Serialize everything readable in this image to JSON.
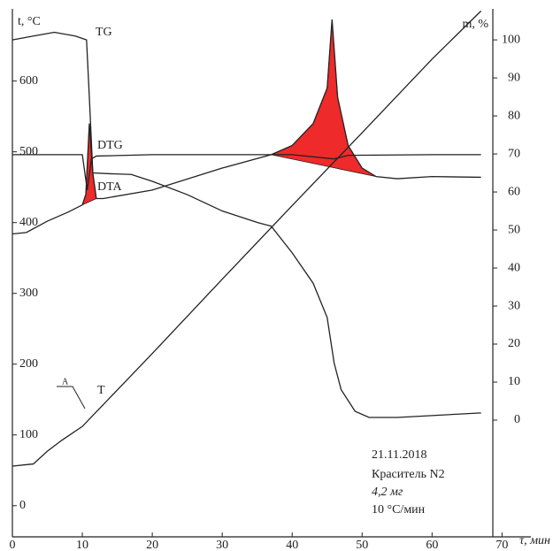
{
  "chart_data": {
    "type": "line",
    "ylabel": "t, °C",
    "y2label": "m, %",
    "xlabel": "τ, мин",
    "xlim": [
      0,
      74
    ],
    "xticks": [
      0,
      10,
      20,
      30,
      40,
      50,
      60,
      70
    ],
    "ylim": [
      -44,
      692
    ],
    "yticks": [
      0,
      100,
      200,
      300,
      400,
      500,
      600
    ],
    "y2lim": [
      -30.7,
      106.3
    ],
    "y2ticks": [
      0,
      10,
      20,
      30,
      40,
      50,
      60,
      70,
      80,
      90,
      100
    ],
    "grid": false,
    "series": [
      {
        "name": "TG",
        "color": "#222222",
        "axis": "y2",
        "x": [
          0,
          3,
          6,
          9,
          10.6,
          11,
          11.5,
          14,
          17,
          20,
          25,
          30,
          35,
          37,
          40,
          43,
          45,
          46,
          47,
          49,
          51,
          55,
          60,
          67
        ],
        "values": [
          100,
          101,
          102,
          101,
          100,
          85,
          65,
          64.8,
          64.6,
          62.8,
          59.3,
          55,
          52,
          51,
          44,
          36,
          27,
          15,
          8,
          2.3,
          0.7,
          0.7,
          1.2,
          1.9
        ]
      },
      {
        "name": "DTG",
        "color": "#222222",
        "x": [
          0,
          10,
          10.7,
          11.3,
          12,
          20,
          40,
          46,
          48,
          60,
          67
        ],
        "values": [
          496,
          496,
          446,
          490,
          494,
          496,
          496,
          490,
          495,
          496,
          496
        ]
      },
      {
        "name": "DTA",
        "color": "#222222",
        "fill": "#ee2a2a",
        "x": [
          0,
          2,
          5,
          8,
          10,
          10.5,
          11,
          11.5,
          12,
          13,
          20,
          30,
          37,
          40,
          43,
          45,
          45.7,
          46.5,
          48,
          50,
          52,
          55,
          60,
          67
        ],
        "values": [
          384,
          386,
          402,
          415,
          425,
          440,
          540,
          470,
          434,
          434,
          446,
          477,
          496,
          509,
          540,
          590,
          687,
          577,
          509,
          477,
          465,
          462,
          465,
          464
        ]
      },
      {
        "name": "T",
        "color": "#222222",
        "x": [
          0,
          3,
          5,
          7,
          10,
          20,
          30,
          40,
          50,
          60,
          67
        ],
        "values": [
          56,
          59,
          77,
          92,
          112,
          215,
          320,
          424,
          527,
          631,
          699
        ]
      }
    ],
    "marker_label": "A",
    "annotations": [
      "21.11.2018",
      "Краситель N2",
      "4,2 мг",
      "10 °С/мин"
    ]
  }
}
